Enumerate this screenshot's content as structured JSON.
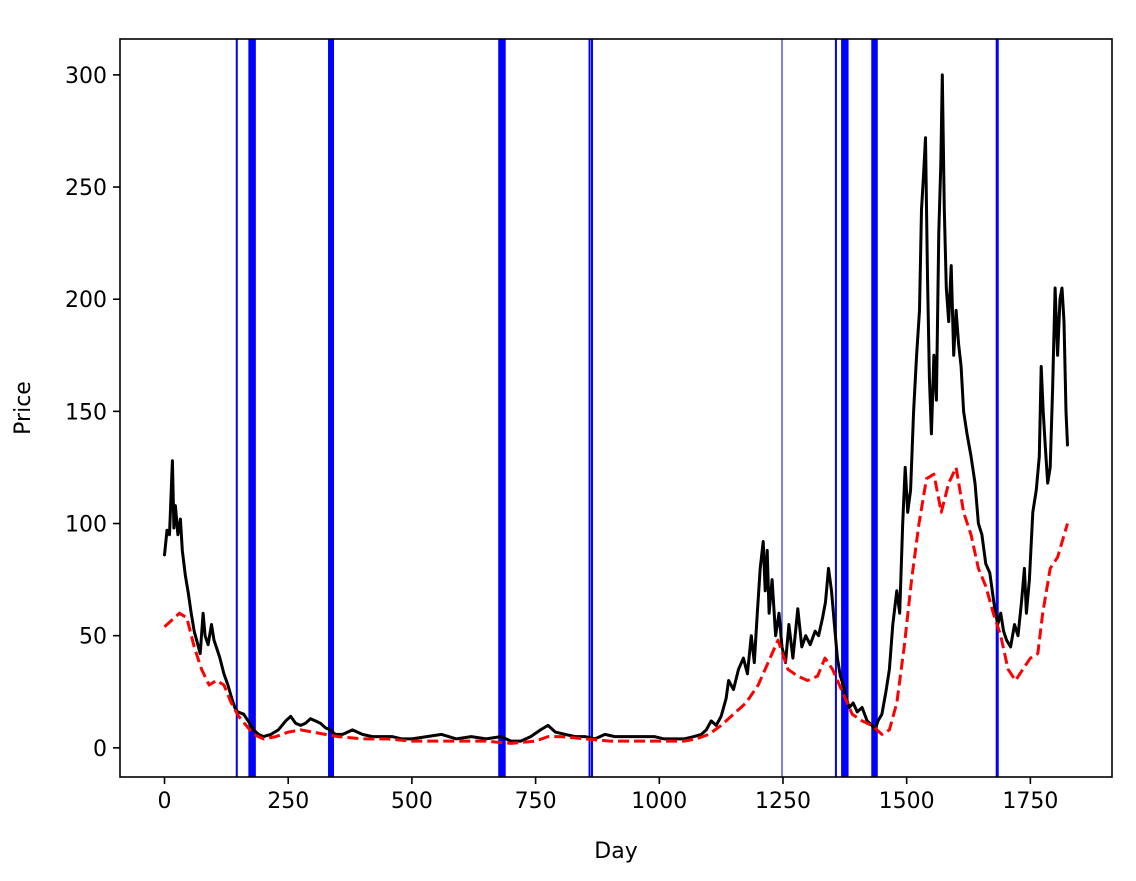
{
  "chart_data": {
    "type": "line",
    "title": "",
    "xlabel": "Day",
    "ylabel": "Price",
    "xlim": [
      -90,
      1915
    ],
    "ylim": [
      -13,
      316
    ],
    "xticks": [
      0,
      250,
      500,
      750,
      1000,
      1250,
      1500,
      1750
    ],
    "yticks": [
      0,
      50,
      100,
      150,
      200,
      250,
      300
    ],
    "grid": false,
    "legend": "none",
    "colors": {
      "price": "#000000",
      "moving_average": "#ff0000",
      "vertical_markers": "#0000ff"
    },
    "series": [
      {
        "style": "solid",
        "color": "#000000",
        "points": [
          [
            0,
            86
          ],
          [
            5,
            97
          ],
          [
            10,
            95
          ],
          [
            13,
            112
          ],
          [
            16,
            128
          ],
          [
            19,
            98
          ],
          [
            22,
            108
          ],
          [
            27,
            95
          ],
          [
            32,
            102
          ],
          [
            36,
            88
          ],
          [
            42,
            77
          ],
          [
            48,
            69
          ],
          [
            54,
            60
          ],
          [
            60,
            52
          ],
          [
            66,
            47
          ],
          [
            72,
            42
          ],
          [
            78,
            60
          ],
          [
            82,
            50
          ],
          [
            88,
            46
          ],
          [
            95,
            55
          ],
          [
            100,
            48
          ],
          [
            106,
            44
          ],
          [
            112,
            40
          ],
          [
            120,
            33
          ],
          [
            128,
            28
          ],
          [
            136,
            22
          ],
          [
            142,
            18
          ],
          [
            148,
            16
          ],
          [
            160,
            15
          ],
          [
            172,
            11
          ],
          [
            180,
            8
          ],
          [
            190,
            6
          ],
          [
            200,
            5
          ],
          [
            215,
            6
          ],
          [
            230,
            8
          ],
          [
            245,
            12
          ],
          [
            255,
            14
          ],
          [
            265,
            11
          ],
          [
            275,
            10
          ],
          [
            285,
            11
          ],
          [
            295,
            13
          ],
          [
            305,
            12
          ],
          [
            315,
            11
          ],
          [
            325,
            9
          ],
          [
            335,
            8
          ],
          [
            345,
            6
          ],
          [
            360,
            6
          ],
          [
            380,
            8
          ],
          [
            400,
            6
          ],
          [
            420,
            5
          ],
          [
            440,
            5
          ],
          [
            460,
            5
          ],
          [
            480,
            4
          ],
          [
            500,
            4
          ],
          [
            530,
            5
          ],
          [
            560,
            6
          ],
          [
            590,
            4
          ],
          [
            620,
            5
          ],
          [
            650,
            4
          ],
          [
            680,
            5
          ],
          [
            700,
            3
          ],
          [
            720,
            3
          ],
          [
            740,
            5
          ],
          [
            760,
            8
          ],
          [
            775,
            10
          ],
          [
            790,
            7
          ],
          [
            810,
            6
          ],
          [
            830,
            5
          ],
          [
            850,
            5
          ],
          [
            870,
            4
          ],
          [
            890,
            6
          ],
          [
            910,
            5
          ],
          [
            930,
            5
          ],
          [
            950,
            5
          ],
          [
            970,
            5
          ],
          [
            990,
            5
          ],
          [
            1010,
            4
          ],
          [
            1030,
            4
          ],
          [
            1050,
            4
          ],
          [
            1070,
            5
          ],
          [
            1085,
            6
          ],
          [
            1095,
            8
          ],
          [
            1105,
            12
          ],
          [
            1115,
            10
          ],
          [
            1125,
            14
          ],
          [
            1135,
            22
          ],
          [
            1140,
            30
          ],
          [
            1150,
            26
          ],
          [
            1160,
            35
          ],
          [
            1170,
            40
          ],
          [
            1178,
            33
          ],
          [
            1186,
            50
          ],
          [
            1192,
            38
          ],
          [
            1198,
            60
          ],
          [
            1204,
            80
          ],
          [
            1210,
            92
          ],
          [
            1214,
            70
          ],
          [
            1218,
            88
          ],
          [
            1222,
            60
          ],
          [
            1228,
            75
          ],
          [
            1235,
            50
          ],
          [
            1242,
            60
          ],
          [
            1248,
            45
          ],
          [
            1255,
            38
          ],
          [
            1262,
            55
          ],
          [
            1270,
            40
          ],
          [
            1280,
            62
          ],
          [
            1288,
            45
          ],
          [
            1296,
            50
          ],
          [
            1305,
            46
          ],
          [
            1315,
            52
          ],
          [
            1322,
            50
          ],
          [
            1330,
            58
          ],
          [
            1336,
            65
          ],
          [
            1342,
            80
          ],
          [
            1348,
            70
          ],
          [
            1354,
            55
          ],
          [
            1360,
            40
          ],
          [
            1366,
            32
          ],
          [
            1372,
            28
          ],
          [
            1378,
            22
          ],
          [
            1384,
            18
          ],
          [
            1392,
            20
          ],
          [
            1400,
            16
          ],
          [
            1410,
            18
          ],
          [
            1420,
            12
          ],
          [
            1430,
            10
          ],
          [
            1436,
            8
          ],
          [
            1442,
            12
          ],
          [
            1450,
            15
          ],
          [
            1458,
            25
          ],
          [
            1465,
            35
          ],
          [
            1472,
            55
          ],
          [
            1480,
            70
          ],
          [
            1486,
            60
          ],
          [
            1492,
            100
          ],
          [
            1497,
            125
          ],
          [
            1502,
            105
          ],
          [
            1508,
            115
          ],
          [
            1514,
            150
          ],
          [
            1520,
            175
          ],
          [
            1526,
            195
          ],
          [
            1530,
            240
          ],
          [
            1534,
            255
          ],
          [
            1538,
            272
          ],
          [
            1542,
            210
          ],
          [
            1546,
            165
          ],
          [
            1550,
            140
          ],
          [
            1555,
            175
          ],
          [
            1560,
            155
          ],
          [
            1565,
            230
          ],
          [
            1569,
            260
          ],
          [
            1572,
            300
          ],
          [
            1576,
            240
          ],
          [
            1580,
            205
          ],
          [
            1585,
            190
          ],
          [
            1590,
            215
          ],
          [
            1595,
            175
          ],
          [
            1600,
            195
          ],
          [
            1605,
            180
          ],
          [
            1610,
            170
          ],
          [
            1615,
            150
          ],
          [
            1622,
            140
          ],
          [
            1630,
            130
          ],
          [
            1638,
            118
          ],
          [
            1645,
            100
          ],
          [
            1652,
            95
          ],
          [
            1660,
            82
          ],
          [
            1668,
            78
          ],
          [
            1676,
            65
          ],
          [
            1684,
            55
          ],
          [
            1690,
            60
          ],
          [
            1696,
            52
          ],
          [
            1702,
            48
          ],
          [
            1710,
            45
          ],
          [
            1718,
            55
          ],
          [
            1725,
            50
          ],
          [
            1732,
            65
          ],
          [
            1738,
            80
          ],
          [
            1742,
            60
          ],
          [
            1748,
            75
          ],
          [
            1755,
            105
          ],
          [
            1762,
            115
          ],
          [
            1768,
            130
          ],
          [
            1772,
            170
          ],
          [
            1776,
            150
          ],
          [
            1780,
            135
          ],
          [
            1785,
            118
          ],
          [
            1790,
            125
          ],
          [
            1795,
            160
          ],
          [
            1800,
            205
          ],
          [
            1805,
            175
          ],
          [
            1810,
            200
          ],
          [
            1814,
            205
          ],
          [
            1818,
            190
          ],
          [
            1822,
            150
          ],
          [
            1825,
            135
          ]
        ]
      },
      {
        "style": "dashed",
        "color": "#ff0000",
        "points": [
          [
            0,
            54
          ],
          [
            15,
            57
          ],
          [
            30,
            60
          ],
          [
            45,
            58
          ],
          [
            60,
            45
          ],
          [
            75,
            35
          ],
          [
            90,
            28
          ],
          [
            105,
            30
          ],
          [
            120,
            28
          ],
          [
            135,
            20
          ],
          [
            150,
            14
          ],
          [
            165,
            10
          ],
          [
            180,
            6
          ],
          [
            200,
            4
          ],
          [
            225,
            5
          ],
          [
            250,
            7
          ],
          [
            275,
            8
          ],
          [
            300,
            7
          ],
          [
            325,
            6
          ],
          [
            350,
            5
          ],
          [
            400,
            4
          ],
          [
            450,
            4
          ],
          [
            500,
            3
          ],
          [
            550,
            3
          ],
          [
            600,
            3
          ],
          [
            650,
            3
          ],
          [
            700,
            2
          ],
          [
            750,
            3
          ],
          [
            775,
            5
          ],
          [
            800,
            5
          ],
          [
            850,
            4
          ],
          [
            900,
            3
          ],
          [
            950,
            3
          ],
          [
            1000,
            3
          ],
          [
            1050,
            3
          ],
          [
            1075,
            4
          ],
          [
            1100,
            6
          ],
          [
            1125,
            10
          ],
          [
            1150,
            15
          ],
          [
            1175,
            20
          ],
          [
            1200,
            28
          ],
          [
            1220,
            38
          ],
          [
            1240,
            48
          ],
          [
            1260,
            35
          ],
          [
            1280,
            32
          ],
          [
            1300,
            30
          ],
          [
            1320,
            32
          ],
          [
            1335,
            40
          ],
          [
            1350,
            35
          ],
          [
            1370,
            25
          ],
          [
            1390,
            15
          ],
          [
            1410,
            12
          ],
          [
            1430,
            10
          ],
          [
            1450,
            6
          ],
          [
            1465,
            8
          ],
          [
            1480,
            20
          ],
          [
            1495,
            45
          ],
          [
            1510,
            75
          ],
          [
            1525,
            100
          ],
          [
            1540,
            120
          ],
          [
            1555,
            122
          ],
          [
            1570,
            105
          ],
          [
            1585,
            118
          ],
          [
            1600,
            125
          ],
          [
            1615,
            105
          ],
          [
            1630,
            95
          ],
          [
            1645,
            80
          ],
          [
            1660,
            72
          ],
          [
            1675,
            60
          ],
          [
            1690,
            50
          ],
          [
            1705,
            35
          ],
          [
            1720,
            30
          ],
          [
            1735,
            35
          ],
          [
            1750,
            40
          ],
          [
            1765,
            42
          ],
          [
            1775,
            60
          ],
          [
            1790,
            80
          ],
          [
            1805,
            85
          ],
          [
            1825,
            100
          ]
        ]
      }
    ],
    "vertical_lines": [
      {
        "x": 146,
        "weight": "thin"
      },
      {
        "x": 174,
        "weight": "bold"
      },
      {
        "x": 180,
        "weight": "bold"
      },
      {
        "x": 335,
        "weight": "bold"
      },
      {
        "x": 338,
        "weight": "bold"
      },
      {
        "x": 679,
        "weight": "bold"
      },
      {
        "x": 685,
        "weight": "bold"
      },
      {
        "x": 859,
        "weight": "thin"
      },
      {
        "x": 864,
        "weight": "thin"
      },
      {
        "x": 1248,
        "weight": "hair"
      },
      {
        "x": 1357,
        "weight": "thin"
      },
      {
        "x": 1372,
        "weight": "bold"
      },
      {
        "x": 1378,
        "weight": "bold"
      },
      {
        "x": 1433,
        "weight": "bold"
      },
      {
        "x": 1437,
        "weight": "bold"
      },
      {
        "x": 1683,
        "weight": "medium"
      }
    ]
  }
}
